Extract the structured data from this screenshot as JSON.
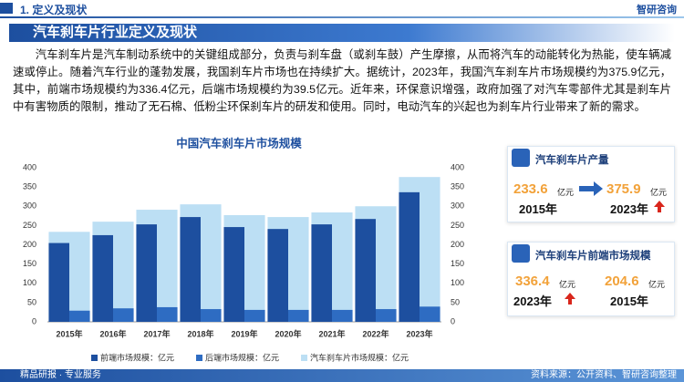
{
  "header": {
    "section": "1. 定义及现状",
    "logo": "智研咨询",
    "title": "汽车刹车片行业定义及现状"
  },
  "body": "汽车刹车片是汽车制动系统中的关键组成部分，负责与刹车盘（或刹车鼓）产生摩擦，从而将汽车的动能转化为热能，使车辆减速或停止。随着汽车行业的蓬勃发展，我国刹车片市场也在持续扩大。据统计，2023年，我国汽车刹车片市场规模约为375.9亿元，其中，前端市场规模约为336.4亿元，后端市场规模约为39.5亿元。近年来，环保意识增强，政府加强了对汽车零部件尤其是刹车片中有害物质的限制，推动了无石棉、低粉尘环保刹车片的研发和使用。同时，电动汽车的兴起也为刹车片行业带来了新的需求。",
  "chart_data": {
    "type": "bar",
    "title": "中国汽车刹车片市场规模",
    "categories": [
      "2015年",
      "2016年",
      "2017年",
      "2018年",
      "2019年",
      "2020年",
      "2021年",
      "2022年",
      "2023年"
    ],
    "series": [
      {
        "name": "前端市场规模：亿元",
        "color": "#1d4f9f",
        "values": [
          204.6,
          225,
          253,
          272,
          246,
          241,
          253,
          267,
          336.4
        ]
      },
      {
        "name": "后端市场规模：亿元",
        "color": "#2e6cc2",
        "values": [
          29,
          35,
          38,
          33,
          31,
          31,
          31,
          33,
          39.5
        ]
      },
      {
        "name": "汽车刹车片市场规模：亿元",
        "color": "#bcdff4",
        "axis": "y2",
        "values": [
          233.6,
          260,
          291,
          305,
          277,
          272,
          284,
          300,
          375.9
        ]
      }
    ],
    "ylim": [
      0,
      400
    ],
    "yticks": [
      0,
      50,
      100,
      150,
      200,
      250,
      300,
      350,
      400
    ],
    "y2lim": [
      0,
      400
    ],
    "y2ticks": [
      0,
      50,
      100,
      150,
      200,
      250,
      300,
      350,
      400
    ],
    "grid": false
  },
  "cards": [
    {
      "title": "汽车刹车片产量",
      "items": [
        {
          "value": 233.6,
          "unit": "亿元",
          "year": "2015年"
        },
        {
          "value": 375.9,
          "unit": "亿元",
          "year": "2023年"
        }
      ]
    },
    {
      "title": "汽车刹车片前端市场规模",
      "items": [
        {
          "value": 336.4,
          "unit": "亿元",
          "year": "2023年"
        },
        {
          "value": 204.6,
          "unit": "亿元",
          "year": "2015年"
        }
      ]
    }
  ],
  "footer": {
    "left": "精品研报 · 专业服务",
    "source": "资料来源：公开资料、智研咨询整理"
  }
}
